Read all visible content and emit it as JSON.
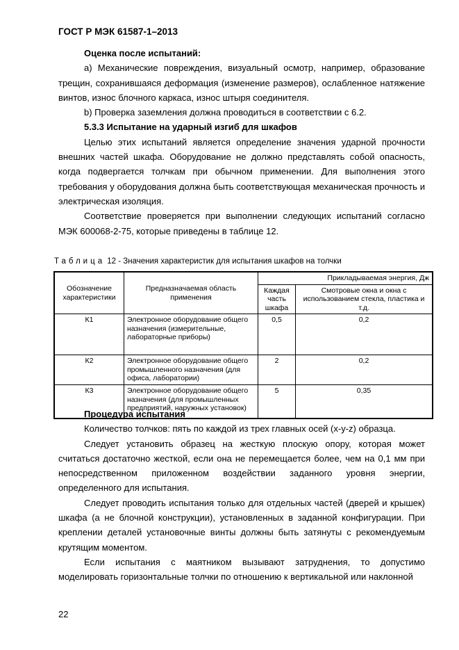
{
  "header": "ГОСТ Р МЭК 61587-1–2013",
  "paragraphs": [
    {
      "text": "Оценка после испытаний:",
      "bold": true
    },
    {
      "text": "а) Механические повреждения, визуальный осмотр, например, образование трещин, сохранившаяся деформация (изменение размеров), ослабленное натяжение винтов, износ блочного каркаса, износ штыря соединителя."
    },
    {
      "text": "b) Проверка заземления должна проводиться в соответствии с 6.2."
    },
    {
      "text": "5.3.3 Испытание на ударный изгиб для шкафов",
      "bold": true
    },
    {
      "text": "Целью этих испытаний является определение значения ударной прочности внешних частей шкафа. Оборудование не должно представлять собой опасность, когда подвергается толчкам при обычном применении. Для выполнения этого требования у оборудования должна быть соответствующая механическая прочность и электрическая изоляция."
    },
    {
      "text": "Соответствие проверяется при выполнении следующих испытаний согласно МЭК 600068-2-75, которые  приведены в таблице 12."
    }
  ],
  "table": {
    "caption_word": "Таблица",
    "caption_rest": " 12 - Значения характеристик для испытания шкафов на толчки",
    "h_designation": "Обозначение характеристики",
    "h_application": "Предназначаемая  область применения",
    "h_energy": "Прикладываемая энергия,  Дж",
    "h_each": "Каждая часть шкафа",
    "h_windows": "Смотровые окна и окна с использованием стекла, пластика и т.д.",
    "rows": [
      {
        "code": "К1",
        "app": "Электронное оборудование общего назначения (измерительные, лабораторные приборы)",
        "each": "0,5",
        "win": "0,2"
      },
      {
        "code": "К2",
        "app": "Электронное оборудование общего промышленного назначения (для офиса, лаборатории)",
        "each": "2",
        "win": "0,2"
      },
      {
        "code": "К3",
        "app": "Электронное оборудование общего назначения (для промышленных предприятий, наружных установок)",
        "each": "5",
        "win": "0,35"
      }
    ]
  },
  "paragraphs2": [
    {
      "text": "Процедура испытания",
      "bold": true
    },
    {
      "text": "Количество толчков: пять по каждой из трех главных осей (x-y-z) образца."
    },
    {
      "text": "Следует установить образец на жесткую плоскую опору, которая может считаться достаточно жесткой, если она не перемещается более, чем на 0,1 мм при непосредственном приложенном воздействии заданного уровня энергии, определенного для испытания."
    },
    {
      "text": "Следует проводить испытания только для отдельных частей (дверей и крышек) шкафа (а не блочной конструкции), установленных в заданной конфигурации. При креплении деталей установочные винты должны быть затянуты с рекомендуемым крутящим моментом."
    },
    {
      "text": "Если испытания с маятником вызывают затруднения, то допустимо моделировать горизонтальные толчки по отношению к вертикальной или наклонной"
    }
  ],
  "page_number": "22"
}
